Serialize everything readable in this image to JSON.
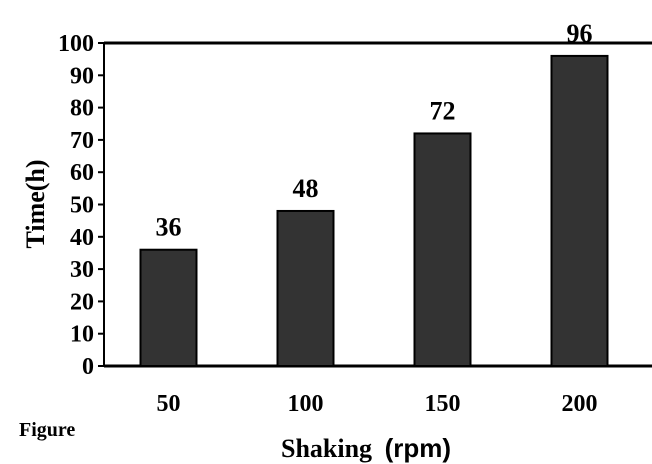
{
  "caption": "Figure",
  "chart_data": {
    "type": "bar",
    "categories": [
      "50",
      "100",
      "150",
      "200"
    ],
    "values": [
      36,
      48,
      72,
      96
    ],
    "data_labels": [
      "36",
      "48",
      "72",
      "96"
    ],
    "xlabel_main": "Shaking",
    "xlabel_unit": "(rpm)",
    "ylabel": "Time(h)",
    "ylim": [
      0,
      100
    ],
    "yticks": [
      0,
      10,
      20,
      30,
      40,
      50,
      60,
      70,
      80,
      90,
      100
    ],
    "grid": false,
    "bar_color": "#333333",
    "bar_edge_color": "#000000"
  }
}
